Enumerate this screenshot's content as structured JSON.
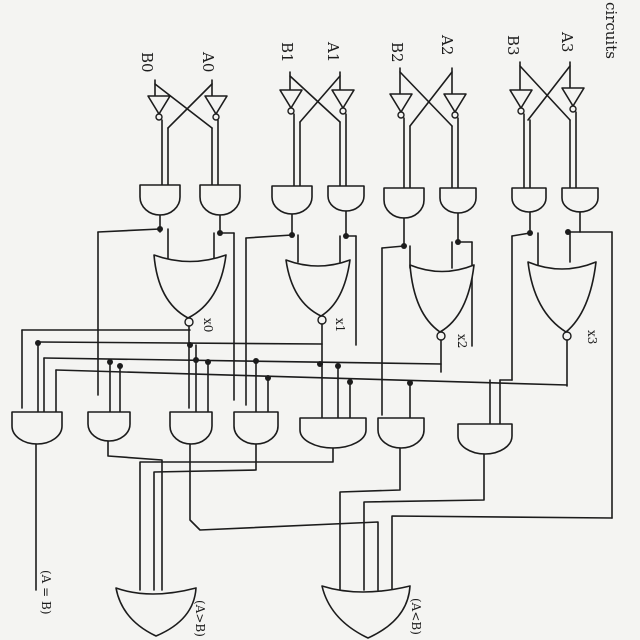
{
  "title": "circuits",
  "inputs": [
    {
      "b": "B0",
      "a": "A0"
    },
    {
      "b": "B1",
      "a": "A1"
    },
    {
      "b": "B2",
      "a": "A2"
    },
    {
      "b": "B3",
      "a": "A3"
    }
  ],
  "xnor_outputs": [
    "x0",
    "x1",
    "x2",
    "x3"
  ],
  "outputs": {
    "eq": "(A = B)",
    "gt": "(A>B)",
    "lt": "(A<B)"
  }
}
